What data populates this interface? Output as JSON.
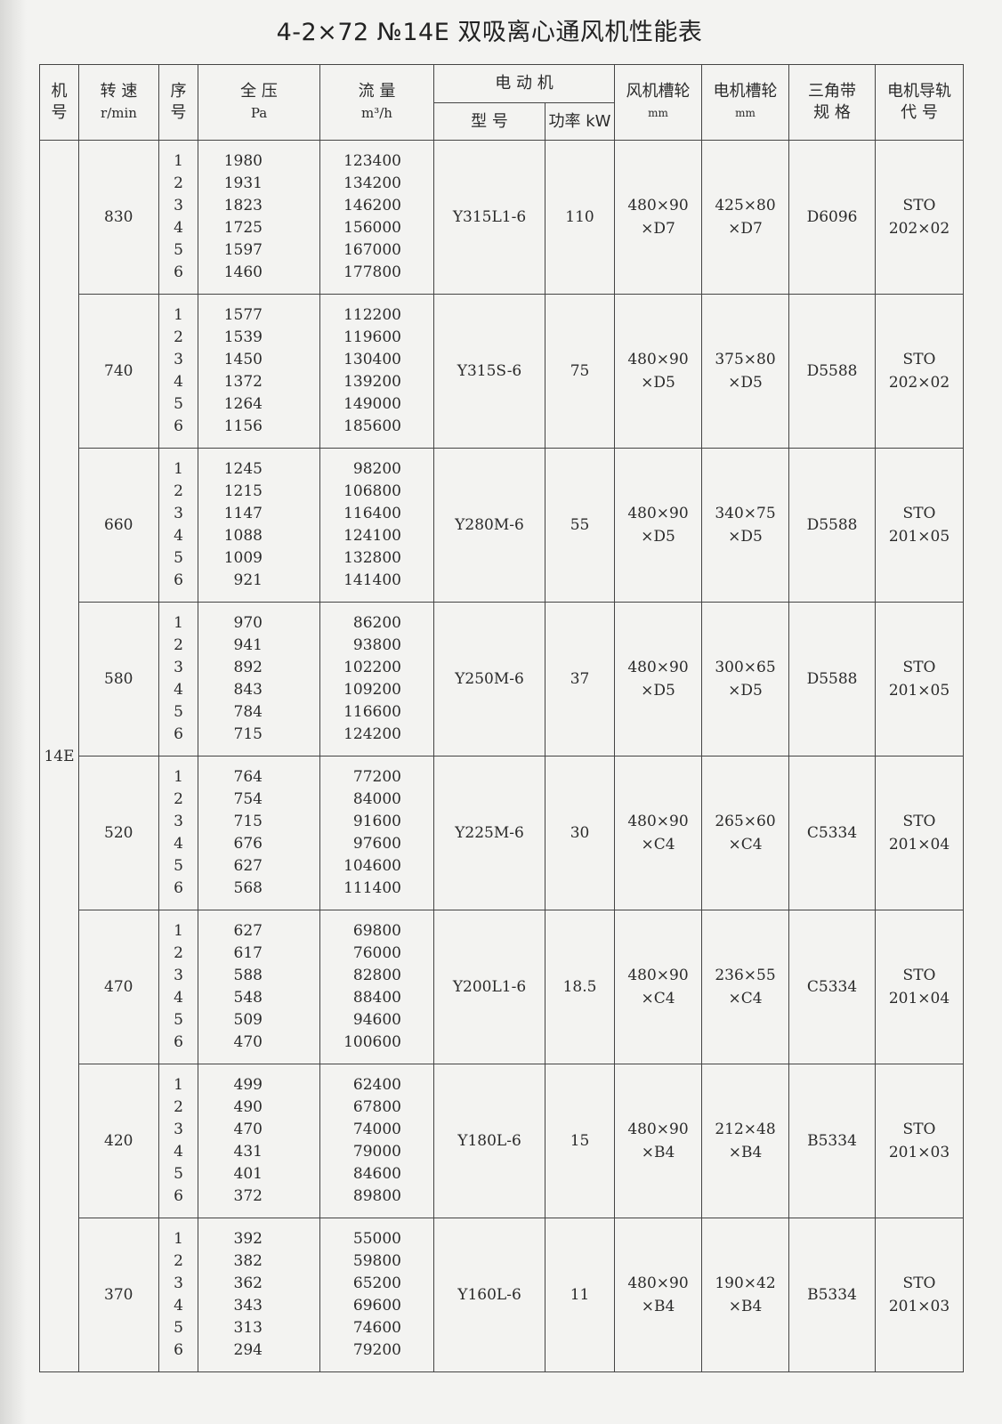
{
  "title": "4-2×72 №14E 双吸离心通风机性能表",
  "headers": {
    "machine_no": [
      "机",
      "号"
    ],
    "speed": "转 速",
    "speed_unit": "r/min",
    "seq": [
      "序",
      "号"
    ],
    "pressure": "全 压",
    "pressure_unit": "Pa",
    "flow": "流 量",
    "flow_unit": "m³/h",
    "motor": "电  动  机",
    "motor_model": "型  号",
    "motor_power": "功率 kW",
    "fan_pulley": "风机槽轮",
    "fan_pulley_unit": "mm",
    "motor_pulley": "电机槽轮",
    "motor_pulley_unit": "mm",
    "belt": [
      "三角带",
      "规 格"
    ],
    "rail": [
      "电机导轨",
      "代 号"
    ]
  },
  "machine_no": "14E",
  "groups": [
    {
      "speed": "830",
      "seq": [
        "1",
        "2",
        "3",
        "4",
        "5",
        "6"
      ],
      "pressure": [
        "1980",
        "1931",
        "1823",
        "1725",
        "1597",
        "1460"
      ],
      "flow": [
        "123400",
        "134200",
        "146200",
        "156000",
        "167000",
        "177800"
      ],
      "model": "Y315L1-6",
      "power": "110",
      "fan_pulley": [
        "480×90",
        "×D7"
      ],
      "motor_pulley": [
        "425×80",
        "×D7"
      ],
      "belt": "D6096",
      "rail": [
        "STO",
        "202×02"
      ]
    },
    {
      "speed": "740",
      "seq": [
        "1",
        "2",
        "3",
        "4",
        "5",
        "6"
      ],
      "pressure": [
        "1577",
        "1539",
        "1450",
        "1372",
        "1264",
        "1156"
      ],
      "flow": [
        "112200",
        "119600",
        "130400",
        "139200",
        "149000",
        "185600"
      ],
      "model": "Y315S-6",
      "power": "75",
      "fan_pulley": [
        "480×90",
        "×D5"
      ],
      "motor_pulley": [
        "375×80",
        "×D5"
      ],
      "belt": "D5588",
      "rail": [
        "STO",
        "202×02"
      ]
    },
    {
      "speed": "660",
      "seq": [
        "1",
        "2",
        "3",
        "4",
        "5",
        "6"
      ],
      "pressure": [
        "1245",
        "1215",
        "1147",
        "1088",
        "1009",
        "921"
      ],
      "flow": [
        "98200",
        "106800",
        "116400",
        "124100",
        "132800",
        "141400"
      ],
      "model": "Y280M-6",
      "power": "55",
      "fan_pulley": [
        "480×90",
        "×D5"
      ],
      "motor_pulley": [
        "340×75",
        "×D5"
      ],
      "belt": "D5588",
      "rail": [
        "STO",
        "201×05"
      ]
    },
    {
      "speed": "580",
      "seq": [
        "1",
        "2",
        "3",
        "4",
        "5",
        "6"
      ],
      "pressure": [
        "970",
        "941",
        "892",
        "843",
        "784",
        "715"
      ],
      "flow": [
        "86200",
        "93800",
        "102200",
        "109200",
        "116600",
        "124200"
      ],
      "model": "Y250M-6",
      "power": "37",
      "fan_pulley": [
        "480×90",
        "×D5"
      ],
      "motor_pulley": [
        "300×65",
        "×D5"
      ],
      "belt": "D5588",
      "rail": [
        "STO",
        "201×05"
      ]
    },
    {
      "speed": "520",
      "seq": [
        "1",
        "2",
        "3",
        "4",
        "5",
        "6"
      ],
      "pressure": [
        "764",
        "754",
        "715",
        "676",
        "627",
        "568"
      ],
      "flow": [
        "77200",
        "84000",
        "91600",
        "97600",
        "104600",
        "111400"
      ],
      "model": "Y225M-6",
      "power": "30",
      "fan_pulley": [
        "480×90",
        "×C4"
      ],
      "motor_pulley": [
        "265×60",
        "×C4"
      ],
      "belt": "C5334",
      "rail": [
        "STO",
        "201×04"
      ]
    },
    {
      "speed": "470",
      "seq": [
        "1",
        "2",
        "3",
        "4",
        "5",
        "6"
      ],
      "pressure": [
        "627",
        "617",
        "588",
        "548",
        "509",
        "470"
      ],
      "flow": [
        "69800",
        "76000",
        "82800",
        "88400",
        "94600",
        "100600"
      ],
      "model": "Y200L1-6",
      "power": "18.5",
      "fan_pulley": [
        "480×90",
        "×C4"
      ],
      "motor_pulley": [
        "236×55",
        "×C4"
      ],
      "belt": "C5334",
      "rail": [
        "STO",
        "201×04"
      ]
    },
    {
      "speed": "420",
      "seq": [
        "1",
        "2",
        "3",
        "4",
        "5",
        "6"
      ],
      "pressure": [
        "499",
        "490",
        "470",
        "431",
        "401",
        "372"
      ],
      "flow": [
        "62400",
        "67800",
        "74000",
        "79000",
        "84600",
        "89800"
      ],
      "model": "Y180L-6",
      "power": "15",
      "fan_pulley": [
        "480×90",
        "×B4"
      ],
      "motor_pulley": [
        "212×48",
        "×B4"
      ],
      "belt": "B5334",
      "rail": [
        "STO",
        "201×03"
      ]
    },
    {
      "speed": "370",
      "seq": [
        "1",
        "2",
        "3",
        "4",
        "5",
        "6"
      ],
      "pressure": [
        "392",
        "382",
        "362",
        "343",
        "313",
        "294"
      ],
      "flow": [
        "55000",
        "59800",
        "65200",
        "69600",
        "74600",
        "79200"
      ],
      "model": "Y160L-6",
      "power": "11",
      "fan_pulley": [
        "480×90",
        "×B4"
      ],
      "motor_pulley": [
        "190×42",
        "×B4"
      ],
      "belt": "B5334",
      "rail": [
        "STO",
        "201×03"
      ]
    }
  ]
}
